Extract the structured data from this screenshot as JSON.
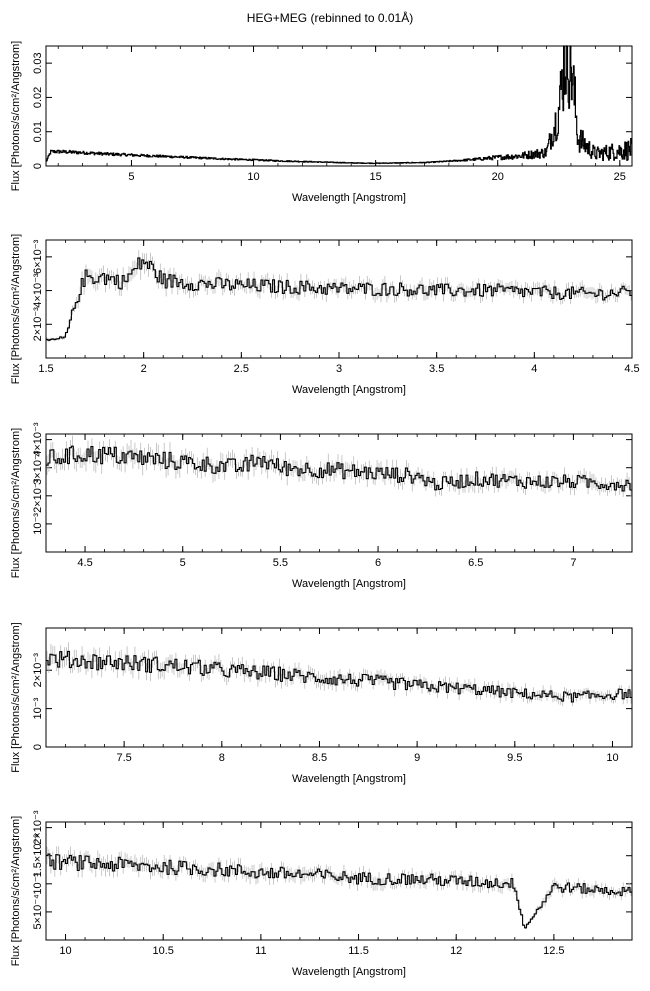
{
  "figure": {
    "title": "HEG+MEG (rebinned to 0.01Å)"
  },
  "chart_data": [
    {
      "type": "line",
      "xlabel": "Wavelength [Angstrom]",
      "ylabel": "Flux [Photons/s/cm²/Angstrom]",
      "xlim": [
        1.5,
        25.5
      ],
      "ylim": [
        0,
        0.035
      ],
      "xticks": [
        5,
        10,
        15,
        20,
        25
      ],
      "xtick_labels": [
        "5",
        "10",
        "15",
        "20",
        "25"
      ],
      "yticks": [
        0,
        0.01,
        0.02,
        0.03
      ],
      "ytick_labels": [
        "0",
        "0.01",
        "0.02",
        "0.03"
      ],
      "series": [
        {
          "x": [
            1.5,
            1.7,
            2.0,
            3.0,
            4.0,
            5.0,
            6.0,
            7.0,
            8.0,
            9.0,
            10.0,
            11.0,
            12.0,
            13.0,
            14.0,
            15.0,
            16.0,
            17.0,
            18.0,
            19.0,
            20.0,
            21.0,
            22.0,
            22.5,
            22.8,
            23.0,
            23.3,
            24.0,
            25.0,
            25.5
          ],
          "values": [
            0.0012,
            0.0042,
            0.0042,
            0.0039,
            0.0035,
            0.0032,
            0.0029,
            0.0026,
            0.0023,
            0.002,
            0.0018,
            0.0015,
            0.0013,
            0.0011,
            0.0009,
            0.0008,
            0.0009,
            0.001,
            0.0014,
            0.0019,
            0.0025,
            0.003,
            0.004,
            0.016,
            0.034,
            0.03,
            0.008,
            0.0035,
            0.0045,
            0.0048
          ]
        }
      ]
    },
    {
      "type": "line",
      "xlabel": "Wavelength [Angstrom]",
      "ylabel": "Flux [Photons/s/cm²/Angstrom]",
      "xlim": [
        1.5,
        4.5
      ],
      "ylim": [
        0,
        0.007
      ],
      "xticks": [
        1.5,
        2,
        2.5,
        3,
        3.5,
        4,
        4.5
      ],
      "xtick_labels": [
        "1.5",
        "2",
        "2.5",
        "3",
        "3.5",
        "4",
        "4.5"
      ],
      "yticks": [
        0.002,
        0.004,
        0.006
      ],
      "ytick_labels": [
        "2×10⁻³",
        "4×10⁻³",
        "6×10⁻³"
      ],
      "series": [
        {
          "x": [
            1.5,
            1.6,
            1.65,
            1.7,
            1.8,
            1.9,
            2.0,
            2.1,
            2.3,
            2.5,
            2.8,
            3.0,
            3.3,
            3.5,
            3.8,
            4.0,
            4.3,
            4.5
          ],
          "values": [
            0.001,
            0.0012,
            0.0032,
            0.0048,
            0.0048,
            0.0045,
            0.0058,
            0.0046,
            0.0044,
            0.0043,
            0.0042,
            0.0041,
            0.0041,
            0.004,
            0.004,
            0.0039,
            0.0038,
            0.0039
          ]
        }
      ]
    },
    {
      "type": "line",
      "xlabel": "Wavelength [Angstrom]",
      "ylabel": "Flux [Photons/s/cm²/Angstrom]",
      "xlim": [
        4.3,
        7.3
      ],
      "ylim": [
        0,
        0.0042
      ],
      "xticks": [
        4.5,
        5,
        5.5,
        6,
        6.5,
        7
      ],
      "xtick_labels": [
        "4.5",
        "5",
        "5.5",
        "6",
        "6.5",
        "7"
      ],
      "yticks": [
        0.001,
        0.002,
        0.003,
        0.004
      ],
      "ytick_labels": [
        "10⁻³",
        "2×10⁻³",
        "3×10⁻³",
        "4×10⁻³"
      ],
      "series": [
        {
          "x": [
            4.3,
            4.5,
            4.7,
            5.0,
            5.3,
            5.4,
            5.5,
            5.8,
            6.0,
            6.2,
            6.3,
            6.5,
            6.8,
            7.0,
            7.3
          ],
          "values": [
            0.0033,
            0.0035,
            0.0034,
            0.0032,
            0.003,
            0.0033,
            0.003,
            0.0029,
            0.0028,
            0.0027,
            0.0024,
            0.0026,
            0.0025,
            0.0025,
            0.0024
          ]
        }
      ]
    },
    {
      "type": "line",
      "xlabel": "Wavelength [Angstrom]",
      "ylabel": "Flux [Photons/s/cm²/Angstrom]",
      "xlim": [
        7.1,
        10.1
      ],
      "ylim": [
        0,
        0.0031
      ],
      "xticks": [
        7.5,
        8,
        8.5,
        9,
        9.5,
        10
      ],
      "xtick_labels": [
        "7.5",
        "8",
        "8.5",
        "9",
        "9.5",
        "10"
      ],
      "yticks": [
        0,
        0.001,
        0.002
      ],
      "ytick_labels": [
        "0",
        "10⁻³",
        "2×10⁻³"
      ],
      "series": [
        {
          "x": [
            7.1,
            7.3,
            7.5,
            7.8,
            8.0,
            8.3,
            8.5,
            8.8,
            9.0,
            9.3,
            9.5,
            9.8,
            10.1
          ],
          "values": [
            0.0023,
            0.00225,
            0.0022,
            0.0021,
            0.002,
            0.0019,
            0.0018,
            0.0017,
            0.0016,
            0.0015,
            0.0014,
            0.0013,
            0.0014
          ]
        }
      ]
    },
    {
      "type": "line",
      "xlabel": "Wavelength [Angstrom]",
      "ylabel": "Flux [Photons/s/cm²/Angstrom]",
      "xlim": [
        9.9,
        12.9
      ],
      "ylim": [
        0,
        0.0021
      ],
      "xticks": [
        10,
        10.5,
        11,
        11.5,
        12,
        12.5
      ],
      "xtick_labels": [
        "10",
        "10.5",
        "11",
        "11.5",
        "12",
        "12.5"
      ],
      "yticks": [
        0.0005,
        0.001,
        0.0015,
        0.002
      ],
      "ytick_labels": [
        "5×10⁻⁴",
        "10⁻³",
        "1.5×10⁻³",
        "2×10⁻³"
      ],
      "series": [
        {
          "x": [
            9.9,
            10.2,
            10.5,
            10.8,
            11.0,
            11.3,
            11.5,
            11.8,
            12.0,
            12.3,
            12.35,
            12.5,
            12.7,
            12.9
          ],
          "values": [
            0.0014,
            0.00135,
            0.0013,
            0.00125,
            0.0012,
            0.00115,
            0.0011,
            0.00108,
            0.00105,
            0.001,
            0.0002,
            0.00095,
            0.0009,
            0.00085
          ]
        }
      ]
    }
  ]
}
